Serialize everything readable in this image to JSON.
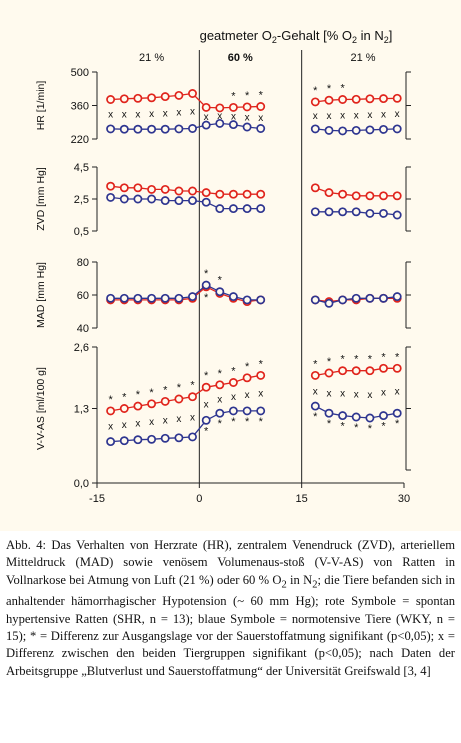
{
  "figure": {
    "header_prefix": "geatmeter O",
    "header_sub": "2",
    "header_suffix": "-Gehalt  [% O",
    "header_sub2": "2",
    "header_end": " in N",
    "header_sub3": "2",
    "header_close": "]",
    "phase_labels": [
      "21 %",
      "60 %",
      "21 %"
    ],
    "x_ticks": [
      "-15",
      "0",
      "15",
      "30"
    ],
    "panel_labels": [
      "HR [1/min]",
      "ZVD [mm Hg]",
      "MAD [mm Hg]",
      "V-V-AS [ml/100 g]"
    ],
    "y_ticks": [
      [
        "500",
        "360",
        "220"
      ],
      [
        "4,5",
        "2,5",
        "0,5"
      ],
      [
        "80",
        "60",
        "40"
      ],
      [
        "2,6",
        "1,3",
        "0,0"
      ]
    ]
  },
  "chart_data": {
    "type": "line",
    "x": [
      -13,
      -11,
      -9,
      -7,
      -5,
      -3,
      -1,
      1,
      3,
      5,
      7,
      9,
      17,
      19,
      21,
      23,
      25,
      27,
      29
    ],
    "colors": {
      "shr": "#e0241c",
      "wky": "#2e3590"
    },
    "panels": [
      {
        "ylabel": "HR [1/min]",
        "ylim": [
          220,
          500
        ],
        "series": [
          {
            "values": [
              385,
              388,
              390,
              392,
              397,
              402,
              410,
              352,
              350,
              352,
              354,
              356,
              375,
              382,
              385,
              386,
              388,
              389,
              390
            ]
          },
          {
            "values": [
              262,
              261,
              261,
              261,
              261,
              262,
              264,
              278,
              285,
              280,
              270,
              264,
              262,
              256,
              254,
              256,
              258,
              260,
              262
            ]
          }
        ],
        "markers": [
          "",
          "",
          "",
          "",
          "",
          "",
          "",
          "",
          "",
          "*",
          "*",
          "*",
          "*",
          "*",
          "*",
          "",
          "",
          "",
          ""
        ],
        "differences": [
          "x",
          "x",
          "x",
          "x",
          "x",
          "x",
          "x",
          "x",
          "x",
          "x",
          "x",
          "x",
          "x",
          "x",
          "x",
          "x",
          "x",
          "x",
          "x"
        ]
      },
      {
        "ylabel": "ZVD [mm Hg]",
        "ylim": [
          0.5,
          4.5
        ],
        "series": [
          {
            "values": [
              3.3,
              3.2,
              3.2,
              3.1,
              3.1,
              3.0,
              3.0,
              2.9,
              2.8,
              2.8,
              2.8,
              2.8,
              3.2,
              2.9,
              2.8,
              2.7,
              2.7,
              2.7,
              2.7
            ]
          },
          {
            "values": [
              2.6,
              2.5,
              2.5,
              2.5,
              2.4,
              2.4,
              2.4,
              2.3,
              1.9,
              1.9,
              1.9,
              1.9,
              1.7,
              1.7,
              1.7,
              1.7,
              1.6,
              1.6,
              1.5
            ]
          }
        ]
      },
      {
        "ylabel": "MAD [mm Hg]",
        "ylim": [
          40,
          80
        ],
        "series": [
          {
            "values": [
              57,
              57,
              57,
              57,
              57,
              57,
              58,
              65,
              61,
              58,
              56,
              57,
              57,
              56,
              57,
              57,
              58,
              58,
              58
            ]
          },
          {
            "values": [
              58,
              58,
              58,
              58,
              58,
              58,
              59,
              66,
              62,
              59,
              57,
              57,
              57,
              55,
              57,
              58,
              58,
              58,
              59
            ]
          }
        ],
        "markers": [
          "",
          "",
          "",
          "",
          "",
          "",
          "",
          "*",
          "*",
          "",
          "",
          "",
          "",
          "",
          "",
          "",
          "",
          "",
          ""
        ],
        "markers_below": [
          "",
          "",
          "",
          "",
          "",
          "",
          "",
          "*",
          "",
          "",
          "",
          "",
          "",
          "",
          "",
          "",
          "",
          "",
          ""
        ]
      },
      {
        "ylabel": "V-V-AS [ml/100 g]",
        "ylim": [
          0,
          2.6
        ],
        "series": [
          {
            "values": [
              1.25,
              1.3,
              1.35,
              1.4,
              1.45,
              1.5,
              1.55,
              1.75,
              1.8,
              1.85,
              1.95,
              2.0,
              2.0,
              2.05,
              2.1,
              2.1,
              2.1,
              2.15,
              2.15
            ]
          },
          {
            "values": [
              0.6,
              0.62,
              0.64,
              0.65,
              0.67,
              0.68,
              0.7,
              1.05,
              1.2,
              1.25,
              1.25,
              1.25,
              1.35,
              1.2,
              1.15,
              1.12,
              1.1,
              1.15,
              1.2
            ]
          }
        ],
        "markers": [
          "*",
          "*",
          "*",
          "*",
          "*",
          "*",
          "*",
          "*",
          "*",
          "*",
          "*",
          "*",
          "*",
          "*",
          "*",
          "*",
          "*",
          "*",
          "*"
        ],
        "markers_below": [
          "",
          "",
          "",
          "",
          "",
          "",
          "",
          "*",
          "*",
          "*",
          "*",
          "*",
          "*",
          "*",
          "*",
          "*",
          "*",
          "*",
          "*"
        ],
        "differences": [
          "x",
          "x",
          "x",
          "x",
          "x",
          "x",
          "x",
          "x",
          "x",
          "x",
          "x",
          "x",
          "x",
          "x",
          "x",
          "x",
          "x",
          "x",
          "x"
        ]
      }
    ]
  },
  "caption": {
    "prefix": "Abb. 4: Das Verhalten von Herzrate (HR), zentralem Venendruck (ZVD), arteriellem Mitteldruck (MAD) sowie venösem Volumenaus-stoß (V-V-AS) von Ratten in Vollnarkose bei Atmung von Luft (21 %) oder 60 % O",
    "sub1": "2",
    "mid": " in N",
    "sub2": "2",
    "suffix": "; die Tiere befanden sich in anhaltender hämorrhagischer Hypotension (~ 60 mm Hg); rote Symbole = spontan hypertensive Ratten (SHR, n = 13); blaue Symbole = normotensive Tiere (WKY, n = 15); * = Differenz zur Ausgangslage vor der Sauerstoffatmung signifikant (p<0,05); x = Differenz zwischen den beiden Tiergruppen signifikant (p<0,05); nach Daten der Arbeitsgruppe „Blutverlust und Sauerstoffatmung“ der Universität Greifswald [3, 4]"
  }
}
